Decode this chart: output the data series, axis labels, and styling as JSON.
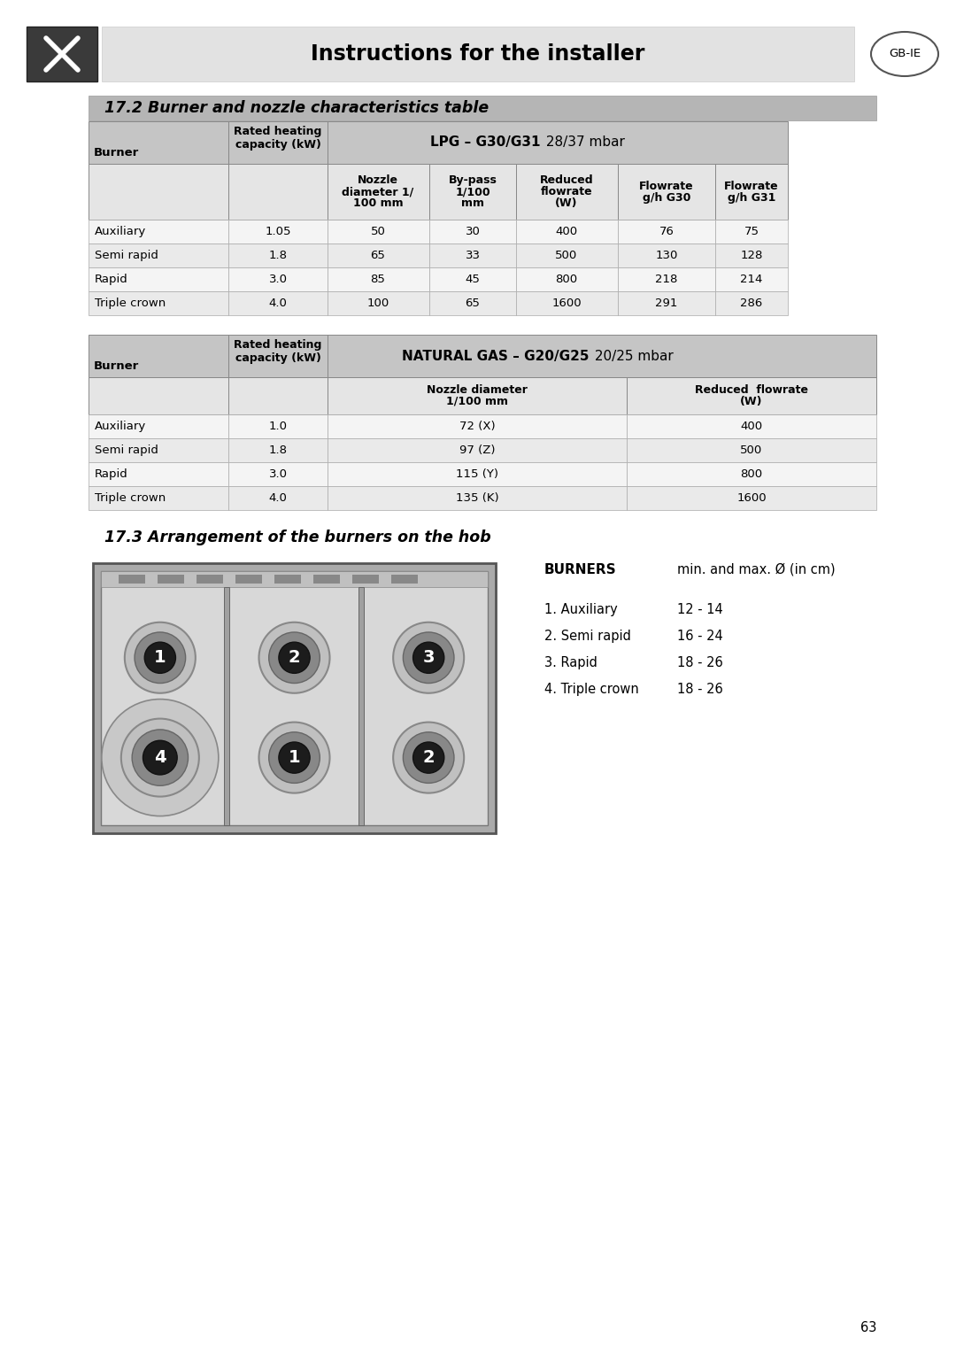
{
  "page_title": "Instructions for the installer",
  "gb_ie_label": "GB-IE",
  "section1_title": "17.2 Burner and nozzle characteristics table",
  "lpg_bold": "LPG – G30/G31",
  "lpg_normal": " 28/37 mbar",
  "lpg_subheaders": [
    "Nozzle\ndiameter 1/\n100 mm",
    "By-pass\n1/100\nmm",
    "Reduced\nflowrate\n(W)",
    "Flowrate\ng/h G30",
    "Flowrate\ng/h G31"
  ],
  "lpg_rows": [
    [
      "Auxiliary",
      "1.05",
      "50",
      "30",
      "400",
      "76",
      "75"
    ],
    [
      "Semi rapid",
      "1.8",
      "65",
      "33",
      "500",
      "130",
      "128"
    ],
    [
      "Rapid",
      "3.0",
      "85",
      "45",
      "800",
      "218",
      "214"
    ],
    [
      "Triple crown",
      "4.0",
      "100",
      "65",
      "1600",
      "291",
      "286"
    ]
  ],
  "ng_bold": "NATURAL GAS – G20/G25",
  "ng_normal": " 20/25 mbar",
  "ng_subheaders": [
    "Nozzle diameter\n1/100 mm",
    "Reduced  flowrate\n(W)"
  ],
  "ng_rows": [
    [
      "Auxiliary",
      "1.0",
      "72 (X)",
      "400"
    ],
    [
      "Semi rapid",
      "1.8",
      "97 (Z)",
      "500"
    ],
    [
      "Rapid",
      "3.0",
      "115 (Y)",
      "800"
    ],
    [
      "Triple crown",
      "4.0",
      "135 (K)",
      "1600"
    ]
  ],
  "section2_title": "17.3 Arrangement of the burners on the hob",
  "burners_title": "BURNERS",
  "burners_subtitle": "min. and max. Ø (in cm)",
  "burner_list": [
    [
      "1. Auxiliary",
      "12 - 14"
    ],
    [
      "2. Semi rapid",
      "16 - 24"
    ],
    [
      "3. Rapid",
      "18 - 26"
    ],
    [
      "4. Triple crown",
      "18 - 26"
    ]
  ],
  "bg_color": "#ffffff",
  "page_num": "63"
}
